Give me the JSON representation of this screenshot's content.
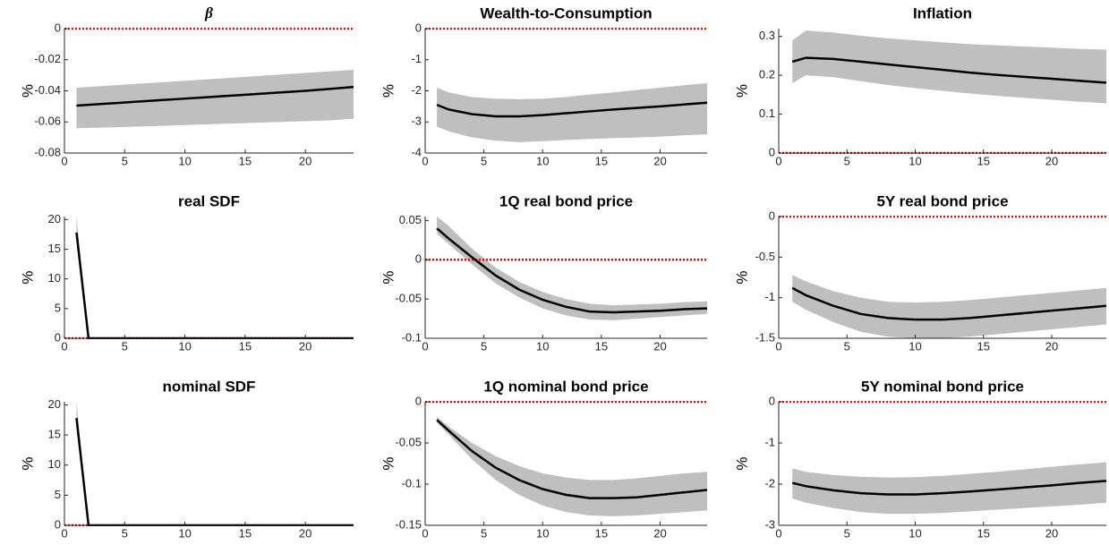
{
  "chart_data": [
    {
      "type": "line",
      "title": "β",
      "ylabel": "%",
      "xlim": [
        0,
        24
      ],
      "xticks": [
        0,
        5,
        10,
        15,
        20
      ],
      "ylim": [
        -0.08,
        0
      ],
      "yticks": [
        -0.08,
        -0.06,
        -0.04,
        -0.02,
        0
      ],
      "x": [
        1,
        2,
        4,
        6,
        8,
        10,
        12,
        14,
        16,
        18,
        20,
        22,
        24
      ],
      "values": [
        -0.0495,
        -0.049,
        -0.048,
        -0.047,
        -0.046,
        -0.045,
        -0.044,
        -0.043,
        -0.042,
        -0.041,
        -0.04,
        -0.0388,
        -0.0375
      ],
      "lower": [
        -0.064,
        -0.0638,
        -0.0635,
        -0.063,
        -0.0625,
        -0.062,
        -0.0615,
        -0.061,
        -0.0605,
        -0.06,
        -0.0595,
        -0.059,
        -0.058
      ],
      "upper": [
        -0.038,
        -0.0375,
        -0.0365,
        -0.0355,
        -0.0345,
        -0.0335,
        -0.0325,
        -0.0315,
        -0.0305,
        -0.0295,
        -0.0285,
        -0.0275,
        -0.0265
      ],
      "color": "#000000",
      "band_color": "#bfbfbf",
      "hline": 0,
      "hline_color": "#ff0000"
    },
    {
      "type": "line",
      "title": "Wealth-to-Consumption",
      "ylabel": "%",
      "xlim": [
        0,
        24
      ],
      "xticks": [
        0,
        5,
        10,
        15,
        20
      ],
      "ylim": [
        -4,
        0
      ],
      "yticks": [
        -4,
        -3,
        -2,
        -1,
        0
      ],
      "x": [
        1,
        2,
        4,
        6,
        8,
        10,
        12,
        14,
        16,
        18,
        20,
        22,
        24
      ],
      "values": [
        -2.45,
        -2.6,
        -2.75,
        -2.82,
        -2.82,
        -2.78,
        -2.72,
        -2.66,
        -2.6,
        -2.55,
        -2.5,
        -2.44,
        -2.38
      ],
      "lower": [
        -3.15,
        -3.3,
        -3.5,
        -3.6,
        -3.65,
        -3.62,
        -3.58,
        -3.55,
        -3.52,
        -3.5,
        -3.47,
        -3.43,
        -3.4
      ],
      "upper": [
        -1.9,
        -2.05,
        -2.2,
        -2.25,
        -2.27,
        -2.25,
        -2.2,
        -2.12,
        -2.05,
        -1.97,
        -1.9,
        -1.82,
        -1.75
      ],
      "color": "#000000",
      "band_color": "#bfbfbf",
      "hline": 0,
      "hline_color": "#ff0000"
    },
    {
      "type": "line",
      "title": "Inflation",
      "ylabel": "%",
      "xlim": [
        0,
        24
      ],
      "xticks": [
        0,
        5,
        10,
        15,
        20
      ],
      "ylim": [
        0,
        0.32
      ],
      "yticks": [
        0,
        0.1,
        0.2,
        0.3
      ],
      "x": [
        1,
        2,
        4,
        6,
        8,
        10,
        12,
        14,
        16,
        18,
        20,
        22,
        24
      ],
      "values": [
        0.235,
        0.245,
        0.242,
        0.235,
        0.228,
        0.221,
        0.214,
        0.207,
        0.201,
        0.196,
        0.191,
        0.186,
        0.181
      ],
      "lower": [
        0.18,
        0.2,
        0.195,
        0.185,
        0.175,
        0.167,
        0.16,
        0.153,
        0.147,
        0.142,
        0.137,
        0.132,
        0.128
      ],
      "upper": [
        0.29,
        0.315,
        0.31,
        0.302,
        0.295,
        0.29,
        0.285,
        0.28,
        0.277,
        0.274,
        0.271,
        0.268,
        0.266
      ],
      "color": "#000000",
      "band_color": "#bfbfbf",
      "hline": 0,
      "hline_color": "#ff0000"
    },
    {
      "type": "line",
      "title": "real SDF",
      "ylabel": "%",
      "xlim": [
        0,
        24
      ],
      "xticks": [
        0,
        5,
        10,
        15,
        20
      ],
      "ylim": [
        0,
        20.5
      ],
      "yticks": [
        0,
        5,
        10,
        15,
        20
      ],
      "x": [
        1,
        2,
        4,
        6,
        8,
        10,
        12,
        14,
        16,
        18,
        20,
        22,
        24
      ],
      "values": [
        17.8,
        0,
        0,
        0,
        0,
        0,
        0,
        0,
        0,
        0,
        0,
        0,
        0
      ],
      "lower": [
        16.5,
        0,
        0,
        0,
        0,
        0,
        0,
        0,
        0,
        0,
        0,
        0,
        0
      ],
      "upper": [
        20.5,
        0,
        0,
        0,
        0,
        0,
        0,
        0,
        0,
        0,
        0,
        0,
        0
      ],
      "color": "#000000",
      "band_color": "#bfbfbf",
      "hline": 0,
      "hline_color": "#ff0000"
    },
    {
      "type": "line",
      "title": "1Q real bond price",
      "ylabel": "%",
      "xlim": [
        0,
        24
      ],
      "xticks": [
        0,
        5,
        10,
        15,
        20
      ],
      "ylim": [
        -0.1,
        0.055
      ],
      "yticks": [
        -0.1,
        -0.05,
        0,
        0.05
      ],
      "x": [
        1,
        2,
        4,
        6,
        8,
        10,
        12,
        14,
        16,
        18,
        20,
        22,
        24
      ],
      "values": [
        0.04,
        0.027,
        0.003,
        -0.02,
        -0.038,
        -0.051,
        -0.06,
        -0.066,
        -0.067,
        -0.066,
        -0.065,
        -0.063,
        -0.062
      ],
      "lower": [
        0.033,
        0.02,
        -0.006,
        -0.03,
        -0.048,
        -0.062,
        -0.071,
        -0.076,
        -0.077,
        -0.075,
        -0.073,
        -0.071,
        -0.069
      ],
      "upper": [
        0.055,
        0.043,
        0.014,
        -0.01,
        -0.028,
        -0.041,
        -0.05,
        -0.056,
        -0.058,
        -0.057,
        -0.056,
        -0.054,
        -0.053
      ],
      "color": "#000000",
      "band_color": "#bfbfbf",
      "hline": 0,
      "hline_color": "#ff0000"
    },
    {
      "type": "line",
      "title": "5Y real bond price",
      "ylabel": "%",
      "xlim": [
        0,
        24
      ],
      "xticks": [
        0,
        5,
        10,
        15,
        20
      ],
      "ylim": [
        -1.5,
        0
      ],
      "yticks": [
        -1.5,
        -1,
        -0.5,
        0
      ],
      "x": [
        1,
        2,
        4,
        6,
        8,
        10,
        12,
        14,
        16,
        18,
        20,
        22,
        24
      ],
      "values": [
        -0.88,
        -0.97,
        -1.1,
        -1.2,
        -1.25,
        -1.27,
        -1.27,
        -1.25,
        -1.22,
        -1.19,
        -1.16,
        -1.13,
        -1.1
      ],
      "lower": [
        -1.05,
        -1.15,
        -1.3,
        -1.42,
        -1.48,
        -1.5,
        -1.5,
        -1.48,
        -1.45,
        -1.42,
        -1.39,
        -1.36,
        -1.33
      ],
      "upper": [
        -0.72,
        -0.8,
        -0.92,
        -1.0,
        -1.05,
        -1.06,
        -1.05,
        -1.03,
        -1.0,
        -0.97,
        -0.94,
        -0.91,
        -0.88
      ],
      "color": "#000000",
      "band_color": "#bfbfbf",
      "hline": 0,
      "hline_color": "#ff0000"
    },
    {
      "type": "line",
      "title": "nominal SDF",
      "ylabel": "%",
      "xlim": [
        0,
        24
      ],
      "xticks": [
        0,
        5,
        10,
        15,
        20
      ],
      "ylim": [
        0,
        20.5
      ],
      "yticks": [
        0,
        5,
        10,
        15,
        20
      ],
      "x": [
        1,
        2,
        4,
        6,
        8,
        10,
        12,
        14,
        16,
        18,
        20,
        22,
        24
      ],
      "values": [
        17.8,
        0,
        0,
        0,
        0,
        0,
        0,
        0,
        0,
        0,
        0,
        0,
        0
      ],
      "lower": [
        16.5,
        0,
        0,
        0,
        0,
        0,
        0,
        0,
        0,
        0,
        0,
        0,
        0
      ],
      "upper": [
        20.5,
        0,
        0,
        0,
        0,
        0,
        0,
        0,
        0,
        0,
        0,
        0,
        0
      ],
      "color": "#000000",
      "band_color": "#bfbfbf",
      "hline": 0,
      "hline_color": "#ff0000"
    },
    {
      "type": "line",
      "title": "1Q nominal bond price",
      "ylabel": "%",
      "xlim": [
        0,
        24
      ],
      "xticks": [
        0,
        5,
        10,
        15,
        20
      ],
      "ylim": [
        -0.15,
        0
      ],
      "yticks": [
        -0.15,
        -0.1,
        -0.05,
        0
      ],
      "x": [
        1,
        2,
        4,
        6,
        8,
        10,
        12,
        14,
        16,
        18,
        20,
        22,
        24
      ],
      "values": [
        -0.022,
        -0.035,
        -0.06,
        -0.08,
        -0.095,
        -0.106,
        -0.113,
        -0.117,
        -0.117,
        -0.116,
        -0.113,
        -0.11,
        -0.107
      ],
      "lower": [
        -0.025,
        -0.04,
        -0.07,
        -0.095,
        -0.113,
        -0.126,
        -0.134,
        -0.138,
        -0.139,
        -0.138,
        -0.136,
        -0.134,
        -0.132
      ],
      "upper": [
        -0.018,
        -0.03,
        -0.05,
        -0.066,
        -0.078,
        -0.087,
        -0.092,
        -0.095,
        -0.095,
        -0.093,
        -0.09,
        -0.087,
        -0.085
      ],
      "color": "#000000",
      "band_color": "#bfbfbf",
      "hline": 0,
      "hline_color": "#ff0000"
    },
    {
      "type": "line",
      "title": "5Y nominal bond price",
      "ylabel": "%",
      "xlim": [
        0,
        24
      ],
      "xticks": [
        0,
        5,
        10,
        15,
        20
      ],
      "ylim": [
        -3,
        0
      ],
      "yticks": [
        -3,
        -2,
        -1,
        0
      ],
      "x": [
        1,
        2,
        4,
        6,
        8,
        10,
        12,
        14,
        16,
        18,
        20,
        22,
        24
      ],
      "values": [
        -1.97,
        -2.05,
        -2.15,
        -2.22,
        -2.25,
        -2.25,
        -2.22,
        -2.18,
        -2.13,
        -2.08,
        -2.03,
        -1.97,
        -1.92
      ],
      "lower": [
        -2.35,
        -2.45,
        -2.58,
        -2.68,
        -2.72,
        -2.72,
        -2.7,
        -2.66,
        -2.62,
        -2.58,
        -2.54,
        -2.5,
        -2.45
      ],
      "upper": [
        -1.62,
        -1.7,
        -1.78,
        -1.82,
        -1.84,
        -1.83,
        -1.8,
        -1.75,
        -1.7,
        -1.64,
        -1.58,
        -1.52,
        -1.47
      ],
      "color": "#000000",
      "band_color": "#bfbfbf",
      "hline": 0,
      "hline_color": "#ff0000"
    }
  ]
}
